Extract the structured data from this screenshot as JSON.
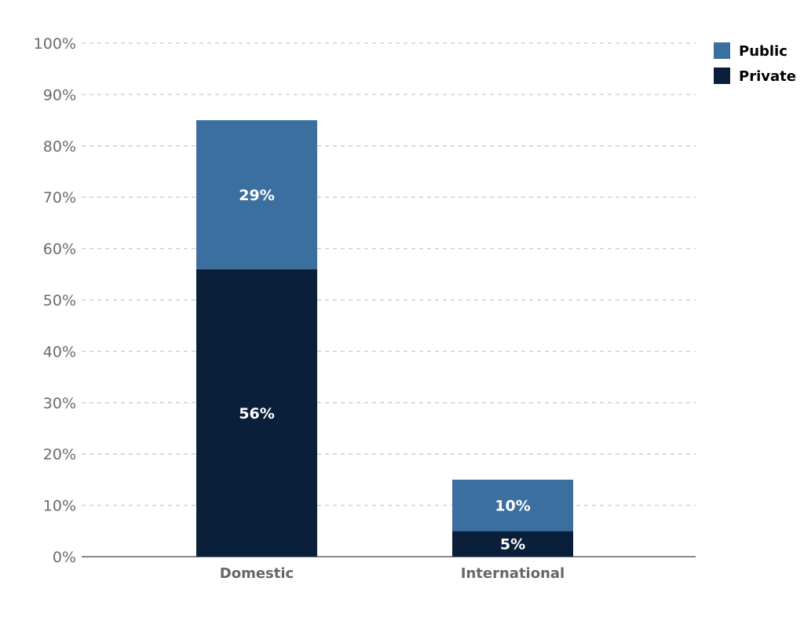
{
  "chart_data": {
    "type": "bar",
    "stacked": true,
    "categories": [
      "Domestic",
      "International"
    ],
    "series": [
      {
        "name": "Private",
        "values": [
          56,
          5
        ],
        "labels": [
          "56%",
          "5%"
        ],
        "color": "#0a1f3a"
      },
      {
        "name": "Public",
        "values": [
          29,
          10
        ],
        "labels": [
          "29%",
          "10%"
        ],
        "color": "#3b6fa0"
      }
    ],
    "title": "",
    "xlabel": "",
    "ylabel": "",
    "ylim": [
      0,
      100
    ],
    "yticks": [
      "0%",
      "10%",
      "20%",
      "30%",
      "40%",
      "50%",
      "60%",
      "70%",
      "80%",
      "90%",
      "100%"
    ],
    "grid": true,
    "legend": {
      "placement": "top-right",
      "entries": [
        "Public",
        "Private"
      ]
    }
  }
}
